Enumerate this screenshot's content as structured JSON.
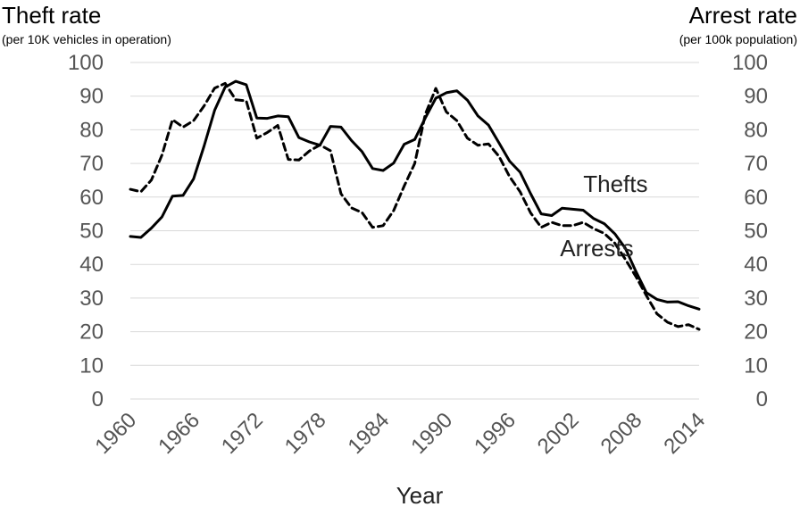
{
  "chart_data": {
    "type": "line",
    "left_axis": {
      "title": "Theft rate",
      "subtitle": "(per 10K vehicles in operation)",
      "range": [
        0,
        100
      ]
    },
    "right_axis": {
      "title": "Arrest rate",
      "subtitle": "(per 100k population)",
      "range": [
        0,
        100
      ]
    },
    "y_ticks": [
      "0",
      "10",
      "20",
      "30",
      "40",
      "50",
      "60",
      "70",
      "80",
      "90",
      "100"
    ],
    "x_range": [
      1960,
      2014
    ],
    "x_ticks": [
      "1960",
      "1966",
      "1972",
      "1978",
      "1984",
      "1990",
      "1996",
      "2002",
      "2008",
      "2014"
    ],
    "xlabel": "Year",
    "grid": true,
    "series": [
      {
        "name": "Thefts",
        "style": "solid",
        "color": "#000000",
        "x": [
          1960,
          1961,
          1962,
          1963,
          1964,
          1965,
          1966,
          1967,
          1968,
          1969,
          1970,
          1971,
          1972,
          1973,
          1974,
          1975,
          1976,
          1977,
          1978,
          1979,
          1980,
          1981,
          1982,
          1983,
          1984,
          1985,
          1986,
          1987,
          1988,
          1989,
          1990,
          1991,
          1992,
          1993,
          1994,
          1995,
          1996,
          1997,
          1998,
          1999,
          2000,
          2001,
          2002,
          2003,
          2004,
          2005,
          2006,
          2007,
          2008,
          2009,
          2010,
          2011,
          2012,
          2013,
          2014
        ],
        "values": [
          48.3,
          48.0,
          50.8,
          54.1,
          60.3,
          60.5,
          65.4,
          75.2,
          85.8,
          92.7,
          94.4,
          93.4,
          83.5,
          83.4,
          84.1,
          83.9,
          77.7,
          76.4,
          75.4,
          81.0,
          80.8,
          76.8,
          73.5,
          68.5,
          67.9,
          70.1,
          75.7,
          77.1,
          83.5,
          89.4,
          91.0,
          91.6,
          88.8,
          84.1,
          81.4,
          76.1,
          70.7,
          67.4,
          61.0,
          55.0,
          54.5,
          56.7,
          56.4,
          56.1,
          53.6,
          52.1,
          49.1,
          44.8,
          37.9,
          31.6,
          29.6,
          28.8,
          28.9,
          27.7,
          26.7
        ]
      },
      {
        "name": "Arrests",
        "style": "dashed",
        "color": "#000000",
        "x": [
          1960,
          1961,
          1962,
          1963,
          1964,
          1965,
          1966,
          1967,
          1968,
          1969,
          1970,
          1971,
          1972,
          1973,
          1974,
          1975,
          1976,
          1977,
          1978,
          1979,
          1980,
          1981,
          1982,
          1983,
          1984,
          1985,
          1986,
          1987,
          1988,
          1989,
          1990,
          1991,
          1992,
          1993,
          1994,
          1995,
          1996,
          1997,
          1998,
          1999,
          2000,
          2001,
          2002,
          2003,
          2004,
          2005,
          2006,
          2007,
          2008,
          2009,
          2010,
          2011,
          2012,
          2013,
          2014
        ],
        "values": [
          62.3,
          61.6,
          65.1,
          72.5,
          83.0,
          80.8,
          82.7,
          87.1,
          92.4,
          93.8,
          88.9,
          88.6,
          77.5,
          79.2,
          81.3,
          71.2,
          71.0,
          73.7,
          75.5,
          73.8,
          61.0,
          56.8,
          55.4,
          51.0,
          51.5,
          56.0,
          63.3,
          70.0,
          84.6,
          92.3,
          85.3,
          82.7,
          77.5,
          75.4,
          75.8,
          72.1,
          66.1,
          61.6,
          55.3,
          51.0,
          52.5,
          51.5,
          51.5,
          52.5,
          50.6,
          49.2,
          46.3,
          41.5,
          36.4,
          30.7,
          25.3,
          22.8,
          21.5,
          22.1,
          20.7
        ]
      }
    ],
    "annotations": [
      {
        "text": "Thefts",
        "x": 2003,
        "y": 61.5
      },
      {
        "text": "Arrests",
        "x": 2000.8,
        "y": 42.5
      }
    ]
  }
}
